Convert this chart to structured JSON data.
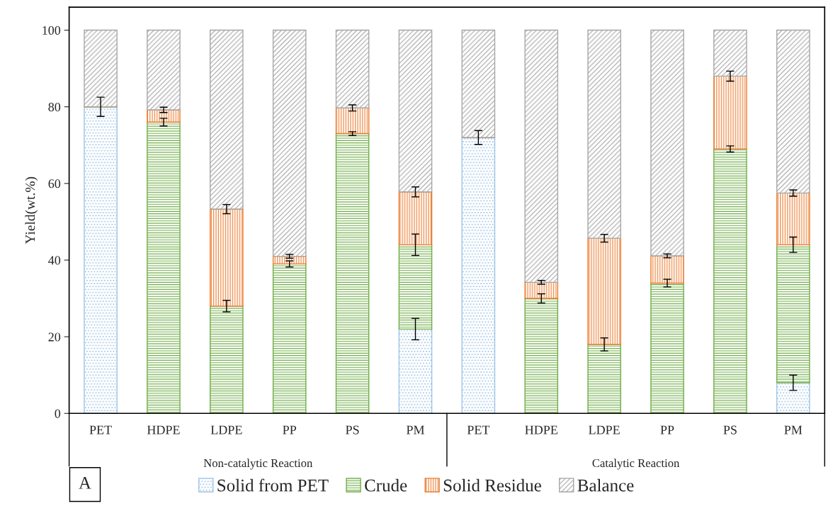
{
  "chart_data": {
    "type": "bar",
    "stacked": true,
    "ylabel": "Yield(wt.%)",
    "categories": [
      "PET",
      "HDPE",
      "LDPE",
      "PP",
      "PS",
      "PM",
      "PET",
      "HDPE",
      "LDPE",
      "PP",
      "PS",
      "PM"
    ],
    "series": [
      {
        "name": "Solid from PET",
        "color": "#9dc3e6",
        "values": [
          80,
          0,
          0,
          0,
          0,
          22,
          72,
          0,
          0,
          0,
          0,
          8
        ],
        "errors": [
          2.5,
          null,
          null,
          null,
          null,
          2.8,
          1.8,
          null,
          null,
          null,
          null,
          2
        ]
      },
      {
        "name": "Crude",
        "color": "#70ad47",
        "values": [
          0,
          76,
          28,
          39,
          73,
          22,
          0,
          30,
          18,
          34,
          69,
          36
        ],
        "errors": [
          null,
          1,
          1.5,
          0.8,
          0.5,
          2.8,
          null,
          1.2,
          1.7,
          1,
          0.8,
          2
        ]
      },
      {
        "name": "Solid Residue",
        "color": "#ed7d31",
        "values": [
          0,
          3.2,
          25.3,
          2,
          6.7,
          13.8,
          0,
          4.2,
          27.7,
          7.1,
          19,
          13.5
        ],
        "errors": [
          null,
          0.7,
          1.2,
          0.5,
          0.8,
          1.3,
          null,
          0.5,
          1,
          0.5,
          1.3,
          0.8
        ]
      },
      {
        "name": "Balance",
        "color": "#a6a6a6",
        "values": [
          20,
          20.8,
          46.7,
          59,
          20.3,
          42.2,
          28,
          65.8,
          54.3,
          58.9,
          12,
          42.5
        ]
      }
    ],
    "ylim": [
      0,
      106
    ],
    "yticks": [
      0,
      20,
      40,
      60,
      80,
      100
    ],
    "grid": false,
    "legend": "bottom",
    "annotations": [
      "Non-catalytic Reaction",
      "Catalytic Reaction",
      "A"
    ]
  }
}
